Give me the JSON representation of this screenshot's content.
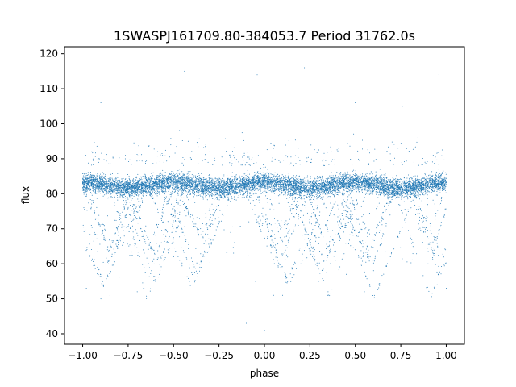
{
  "chart_data": {
    "type": "scatter",
    "title": "1SWASPJ161709.80-384053.7 Period 31762.0s",
    "xlabel": "phase",
    "ylabel": "flux",
    "xlim": [
      -1.1,
      1.1
    ],
    "ylim": [
      37,
      122
    ],
    "xticks": [
      -1.0,
      -0.75,
      -0.5,
      -0.25,
      0.0,
      0.25,
      0.5,
      0.75,
      1.0
    ],
    "xtick_labels": [
      "−1.00",
      "−0.75",
      "−0.50",
      "−0.25",
      "0.00",
      "0.25",
      "0.50",
      "0.75",
      "1.00"
    ],
    "yticks": [
      40,
      50,
      60,
      70,
      80,
      90,
      100,
      110,
      120
    ],
    "ytick_labels": [
      "40",
      "50",
      "60",
      "70",
      "80",
      "90",
      "100",
      "110",
      "120"
    ],
    "grid": false,
    "legend": "none",
    "marker_color": "#1f77b4",
    "series": [
      {
        "points_summary": "dense band of flux 78–88 across phase −1 to 1; V-shaped dips reaching ~50 near phase −0.85, −0.6, 0.1, 0.35, 0.55, 0.95; scattered outliers up to ~118",
        "sample_points": [
          [
            -1.0,
            83
          ],
          [
            -0.98,
            53
          ],
          [
            -0.9,
            50
          ],
          [
            -0.85,
            51
          ],
          [
            -0.8,
            56
          ],
          [
            -0.7,
            52
          ],
          [
            -0.6,
            55
          ],
          [
            -0.5,
            62
          ],
          [
            -0.45,
            83
          ],
          [
            -0.3,
            82
          ],
          [
            -0.25,
            84
          ],
          [
            -0.15,
            80
          ],
          [
            -0.05,
            55
          ],
          [
            0.05,
            51
          ],
          [
            0.1,
            51
          ],
          [
            0.2,
            60
          ],
          [
            0.3,
            55
          ],
          [
            0.35,
            52
          ],
          [
            0.45,
            57
          ],
          [
            0.55,
            52
          ],
          [
            0.6,
            58
          ],
          [
            0.7,
            82
          ],
          [
            0.8,
            83
          ],
          [
            0.9,
            60
          ],
          [
            0.95,
            54
          ],
          [
            1.0,
            53
          ],
          [
            -0.44,
            115
          ],
          [
            -0.04,
            114
          ],
          [
            0.22,
            116
          ],
          [
            0.5,
            106
          ],
          [
            0.76,
            105
          ],
          [
            0.96,
            114
          ],
          [
            -0.9,
            106
          ],
          [
            -0.1,
            43
          ],
          [
            0.0,
            41
          ]
        ]
      }
    ]
  }
}
